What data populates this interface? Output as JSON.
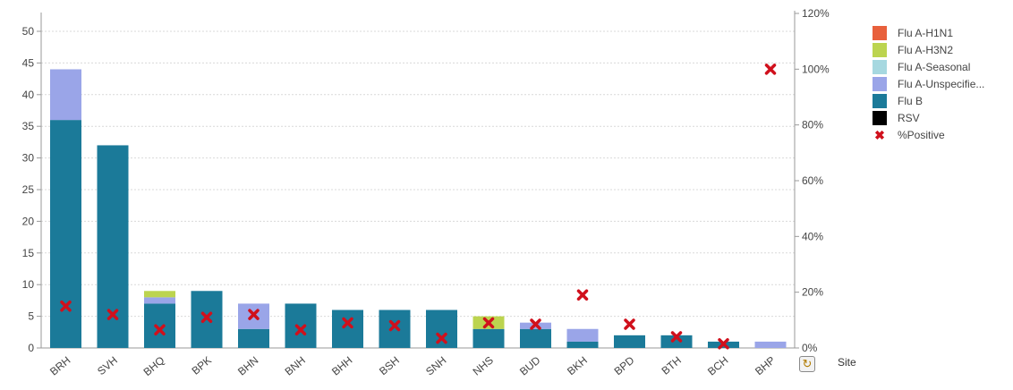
{
  "chart_data": {
    "type": "bar",
    "stacked": true,
    "xlabel": "Site",
    "categories": [
      "BRH",
      "SVH",
      "BHQ",
      "BPK",
      "BHN",
      "BNH",
      "BHH",
      "BSH",
      "SNH",
      "NHS",
      "BUD",
      "BKH",
      "BPD",
      "BTH",
      "BCH",
      "BHP"
    ],
    "ylim": [
      0,
      50
    ],
    "y_ticks": [
      0,
      5,
      10,
      15,
      20,
      25,
      30,
      35,
      40,
      45,
      50
    ],
    "y2lim": [
      0,
      120
    ],
    "y2_ticks": [
      "0%",
      "20%",
      "40%",
      "60%",
      "80%",
      "100%",
      "120%"
    ],
    "grid": true,
    "legend_position": "right",
    "series": [
      {
        "name": "Flu A-H1N1",
        "color": "#e8603c",
        "values": [
          0,
          0,
          0,
          0,
          0,
          0,
          0,
          0,
          0,
          0,
          0,
          0,
          0,
          0,
          0,
          0
        ]
      },
      {
        "name": "Flu A-H3N2",
        "color": "#bcd44f",
        "values": [
          0,
          0,
          1,
          0,
          0,
          0,
          0,
          0,
          0,
          2,
          0,
          0,
          0,
          0,
          0,
          0
        ]
      },
      {
        "name": "Flu A-Seasonal",
        "color": "#a6d8e0",
        "values": [
          0,
          0,
          0,
          0,
          0,
          0,
          0,
          0,
          0,
          0,
          0,
          0,
          0,
          0,
          0,
          0
        ]
      },
      {
        "name": "Flu A-Unspecifie...",
        "color": "#9aa5e8",
        "values": [
          8,
          0,
          1,
          0,
          4,
          0,
          0,
          0,
          0,
          0,
          1,
          2,
          0,
          0,
          0,
          1
        ]
      },
      {
        "name": "Flu B",
        "color": "#1b7a99",
        "values": [
          36,
          32,
          7,
          9,
          3,
          7,
          6,
          6,
          6,
          3,
          3,
          1,
          2,
          2,
          1,
          0
        ]
      },
      {
        "name": "RSV",
        "color": "#000000",
        "values": [
          0,
          0,
          0,
          0,
          0,
          0,
          0,
          0,
          0,
          0,
          0,
          0,
          0,
          0,
          0,
          0
        ]
      }
    ],
    "line_series": {
      "name": "%Positive",
      "marker": "x",
      "color": "#d0101c",
      "axis": "right",
      "values": [
        15,
        12,
        6.5,
        11,
        12,
        6.5,
        9,
        8,
        3.5,
        9,
        8.5,
        19,
        8.5,
        4,
        1.5,
        100
      ]
    }
  },
  "ui": {
    "site_label": "Site",
    "cycle_icon": "cycle-group-icon"
  }
}
